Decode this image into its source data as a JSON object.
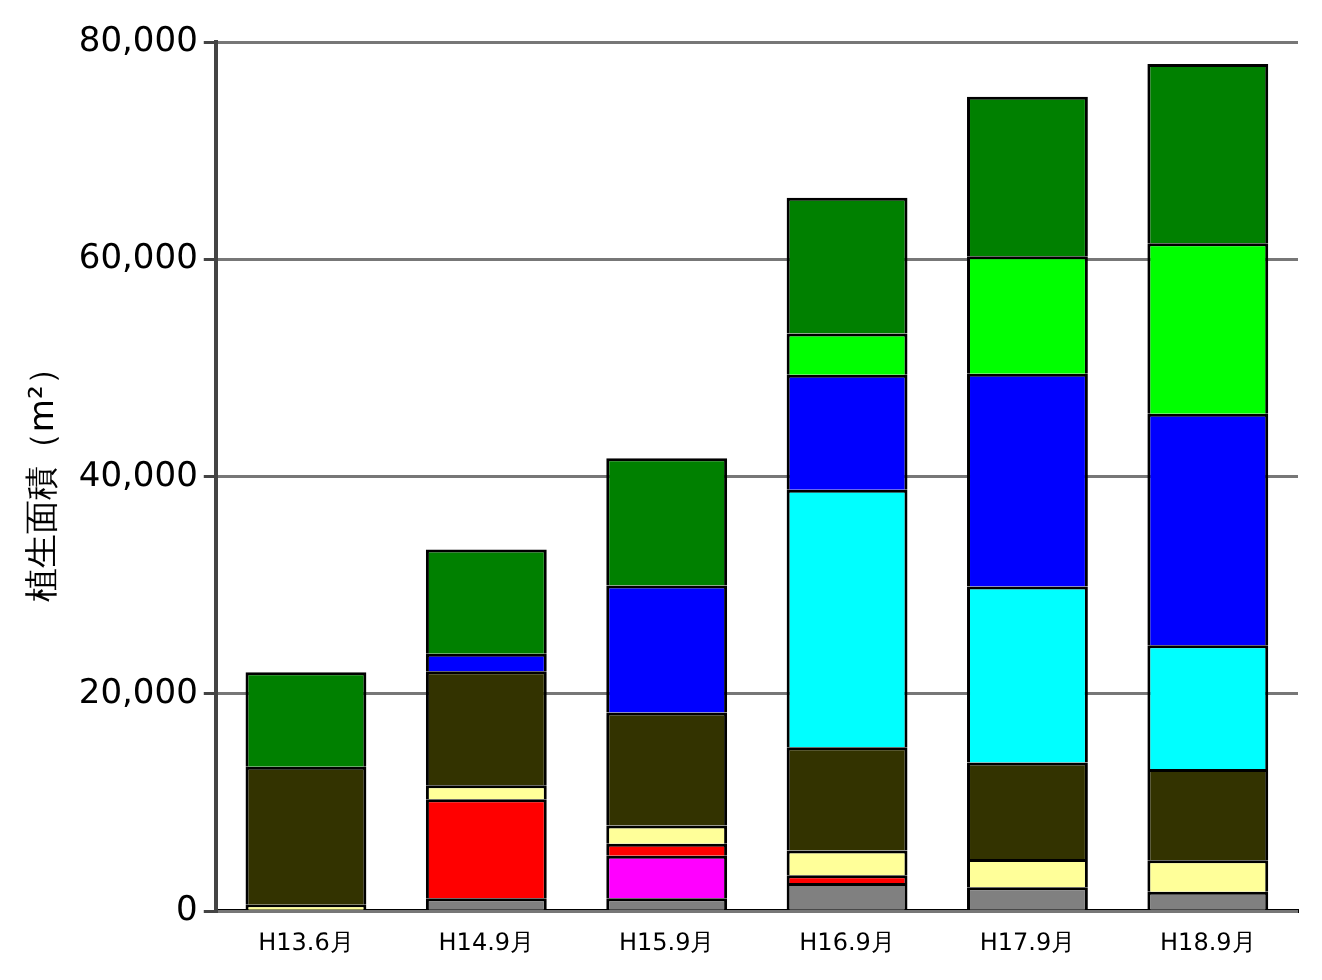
{
  "chart_data": {
    "type": "bar",
    "stacked": true,
    "ylabel": "植生面積（m²）",
    "categories": [
      "H13.6月",
      "H14.9月",
      "H15.9月",
      "H16.9月",
      "H17.9月",
      "H18.9月"
    ],
    "series": [
      {
        "color": "#808080",
        "values": [
          null,
          1200,
          1200,
          2600,
          2200,
          1800
        ]
      },
      {
        "color": "#ff00ff",
        "values": [
          null,
          null,
          3900,
          null,
          null,
          null
        ]
      },
      {
        "color": "#ff0000",
        "values": [
          null,
          9100,
          1100,
          700,
          null,
          null
        ]
      },
      {
        "color": "#ffff99",
        "values": [
          600,
          1300,
          1700,
          2300,
          2600,
          2900
        ]
      },
      {
        "color": "#333300",
        "values": [
          12700,
          10500,
          10400,
          9500,
          8900,
          8400
        ]
      },
      {
        "color": "#00ffff",
        "values": [
          null,
          null,
          null,
          23700,
          16200,
          11400
        ]
      },
      {
        "color": "#0000ff",
        "values": [
          null,
          1600,
          11700,
          10600,
          19600,
          21300
        ]
      },
      {
        "color": "#00ff00",
        "values": [
          null,
          null,
          null,
          3800,
          10800,
          15700
        ]
      },
      {
        "color": "#008000",
        "values": [
          8700,
          9600,
          11700,
          12500,
          14700,
          16500
        ]
      }
    ],
    "ylim": [
      0,
      80000
    ],
    "yticks": [
      {
        "value": 0,
        "label": "0"
      },
      {
        "value": 20000,
        "label": "20,000"
      },
      {
        "value": 40000,
        "label": "40,000"
      },
      {
        "value": 60000,
        "label": "60,000"
      },
      {
        "value": 80000,
        "label": "80,000"
      }
    ],
    "grid": "y",
    "legend": false
  }
}
